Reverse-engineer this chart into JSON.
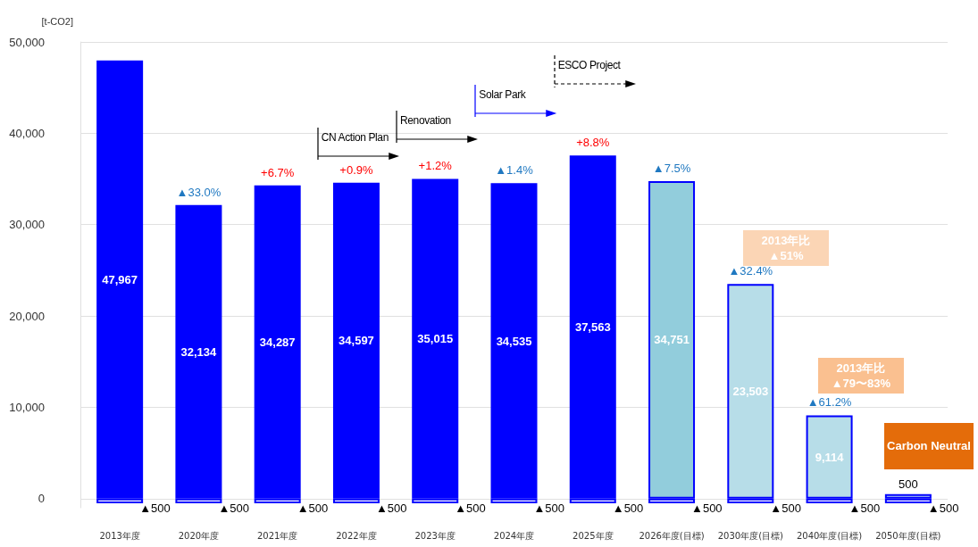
{
  "chart_data": {
    "type": "bar",
    "ylabel": "[t-CO2]",
    "stacked": true,
    "grid": "y",
    "categories": [
      "2013年度",
      "2020年度",
      "2021年度",
      "2022年度",
      "2023年度",
      "2024年度",
      "2025年度",
      "2026年度(目標)",
      "2030年度(目標)",
      "2040年度(目標)",
      "2050年度(目標)"
    ],
    "series": [
      {
        "values": [
          47967,
          32134,
          34287,
          34597,
          35015,
          34535,
          37563,
          34751,
          23503,
          9114,
          500
        ],
        "colors": [
          "#0000ff",
          "#0000ff",
          "#0000ff",
          "#0000ff",
          "#0000ff",
          "#0000ff",
          "#0000ff",
          "#92cddc",
          "#b7dde8",
          "#b7dde8",
          "#b7dde8"
        ],
        "value_labels": [
          "47,967",
          "32,134",
          "34,287",
          "34,597",
          "35,015",
          "34,535",
          "37,563",
          "34,751",
          "23,503",
          "9,114",
          "500"
        ]
      },
      {
        "values": [
          -500,
          -500,
          -500,
          -500,
          -500,
          -500,
          -500,
          -500,
          -500,
          -500,
          -500
        ],
        "color": "#ffffff"
      }
    ],
    "ylim": [
      -1000,
      50000
    ],
    "yticks": [
      0,
      {
        "value": 10000,
        "label": "10,000"
      },
      {
        "value": 20000,
        "label": "20,000"
      },
      {
        "value": 30000,
        "label": "30,000"
      },
      {
        "value": 40000,
        "label": "40,000"
      },
      {
        "value": 50000,
        "label": "50,000"
      }
    ],
    "annotations": [
      {
        "text": "▲33.0%",
        "x": "2020年度",
        "y": 32134
      },
      {
        "text": "+6.7%",
        "x": "2021年度",
        "y": 34287
      },
      {
        "text": "+0.9%",
        "x": "2022年度",
        "y": 34597
      },
      {
        "text": "+1.2%",
        "x": "2023年度",
        "y": 35015
      },
      {
        "text": "▲1.4%",
        "x": "2024年度",
        "y": 34535
      },
      {
        "text": "+8.8%",
        "x": "2025年度",
        "y": 37563
      },
      {
        "text": "▲7.5%",
        "x": "2026年度(目標)",
        "y": 34751
      },
      {
        "text": "▲32.4%",
        "x": "2030年度(目標)",
        "y": 23503
      },
      {
        "text": "▲61.2%",
        "x": "2040年度(目標)",
        "y": 9114
      },
      {
        "text": "▲500",
        "x": "2013年度",
        "y": -500
      },
      {
        "text": "▲500",
        "x": "2020年度",
        "y": -500
      },
      {
        "text": "▲500",
        "x": "2021年度",
        "y": -500
      },
      {
        "text": "▲500",
        "x": "2022年度",
        "y": -500
      },
      {
        "text": "▲500",
        "x": "2023年度",
        "y": -500
      },
      {
        "text": "▲500",
        "x": "2024年度",
        "y": -500
      },
      {
        "text": "▲500",
        "x": "2025年度",
        "y": -500
      },
      {
        "text": "▲500",
        "x": "2026年度(目標)",
        "y": -500
      },
      {
        "text": "▲500",
        "x": "2030年度(目標)",
        "y": -500
      },
      {
        "text": "▲500",
        "x": "2040年度(目標)",
        "y": -500
      },
      {
        "text": "▲500",
        "x": "2050年度(目標)",
        "y": -500
      },
      "CN Action Plan",
      "Renovation",
      "Solar Park",
      "ESCO Project",
      "2013年比\n▲51%",
      "2013年比\n▲79〜83%",
      "Carbon Neutral"
    ]
  }
}
